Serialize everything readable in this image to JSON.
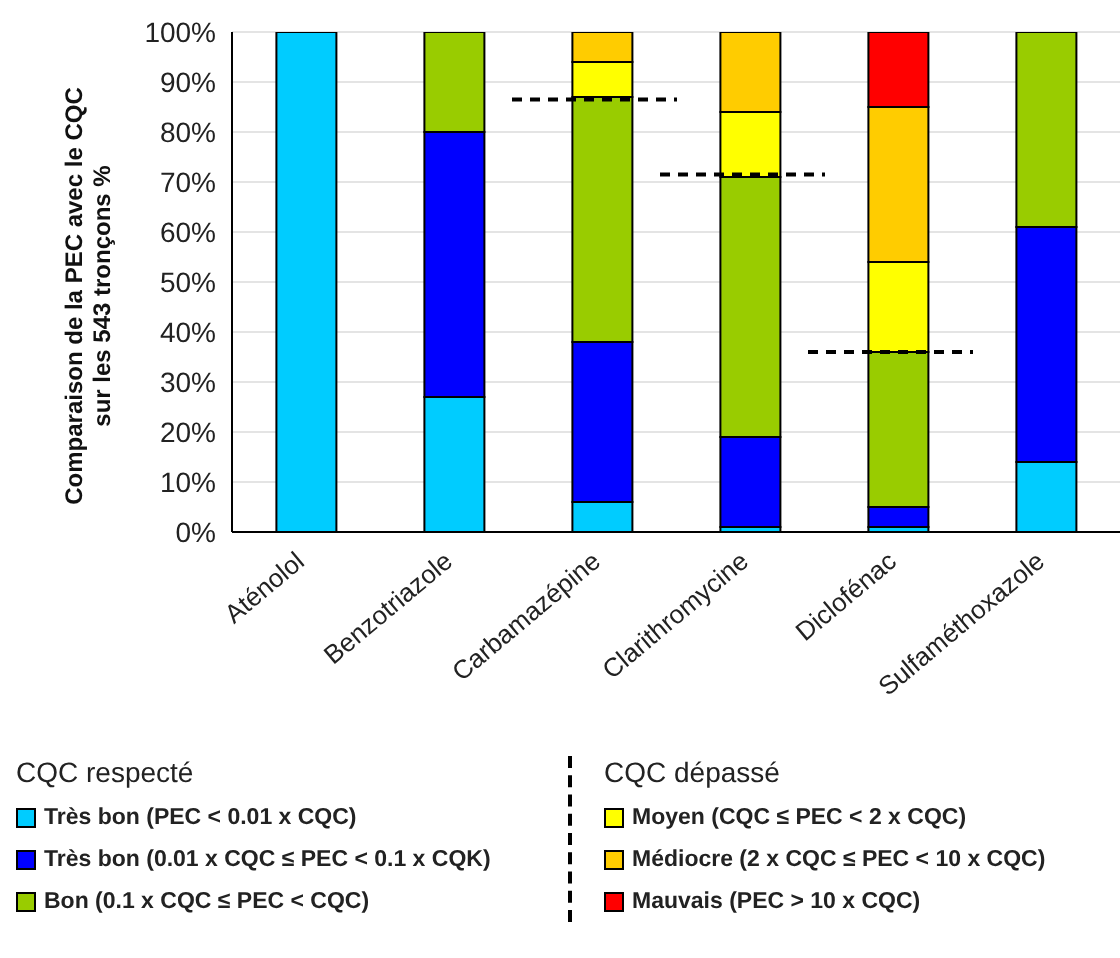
{
  "chart_data": {
    "type": "bar",
    "stacked": true,
    "ylabel": "Comparaison de la PEC avec le CQC\nsur les 543 tronçons %",
    "categories": [
      "Aténolol",
      "Benzotriazole",
      "Carbamazépine",
      "Clarithromycine",
      "Diclofénac",
      "Sulfaméthoxazole"
    ],
    "series": [
      {
        "name": "Très bon (PEC < 0.01 x CQC)",
        "color": "#00ccff",
        "values": [
          100,
          27,
          6,
          1,
          1,
          14
        ]
      },
      {
        "name": "Très bon (0.01 x CQC ≤ PEC < 0.1 x CQK)",
        "color": "#0000ff",
        "values": [
          0,
          53,
          32,
          18,
          4,
          47
        ]
      },
      {
        "name": "Bon (0.1 x CQC ≤ PEC < CQC)",
        "color": "#99cc00",
        "values": [
          0,
          20,
          49,
          52,
          31,
          39
        ]
      },
      {
        "name": "Moyen (CQC ≤ PEC <  2 x CQC)",
        "color": "#ffff00",
        "values": [
          0,
          0,
          7,
          13,
          18,
          0
        ]
      },
      {
        "name": "Médiocre (2 x CQC ≤ PEC < 10 x CQC)",
        "color": "#ffcc00",
        "values": [
          0,
          0,
          6,
          16,
          31,
          0
        ]
      },
      {
        "name": "Mauvais (PEC > 10 x CQC)",
        "color": "#ff0000",
        "values": [
          0,
          0,
          0,
          0,
          15,
          0
        ]
      }
    ],
    "ref_lines": [
      {
        "axis": "y",
        "value": 86.5,
        "color": "#000000",
        "line_style": "dashed"
      },
      {
        "axis": "y",
        "value": 71.5,
        "color": "#000000",
        "line_style": "dashed"
      },
      {
        "axis": "y",
        "value": 36,
        "color": "#000000",
        "line_style": "dashed"
      }
    ],
    "legend_title": [
      "CQC respecté",
      "CQC dépassé"
    ],
    "ylim": [
      0,
      100
    ],
    "yticks": [
      {
        "value": 0,
        "label": "0%"
      },
      {
        "value": 10,
        "label": "10%"
      },
      {
        "value": 20,
        "label": "20%"
      },
      {
        "value": 30,
        "label": "30%"
      },
      {
        "value": 40,
        "label": "40%"
      },
      {
        "value": 50,
        "label": "50%"
      },
      {
        "value": 60,
        "label": "60%"
      },
      {
        "value": 70,
        "label": "70%"
      },
      {
        "value": 80,
        "label": "80%"
      },
      {
        "value": 90,
        "label": "90%"
      },
      {
        "value": 100,
        "label": "100%"
      }
    ],
    "grid": "y",
    "legend": "bottom"
  }
}
